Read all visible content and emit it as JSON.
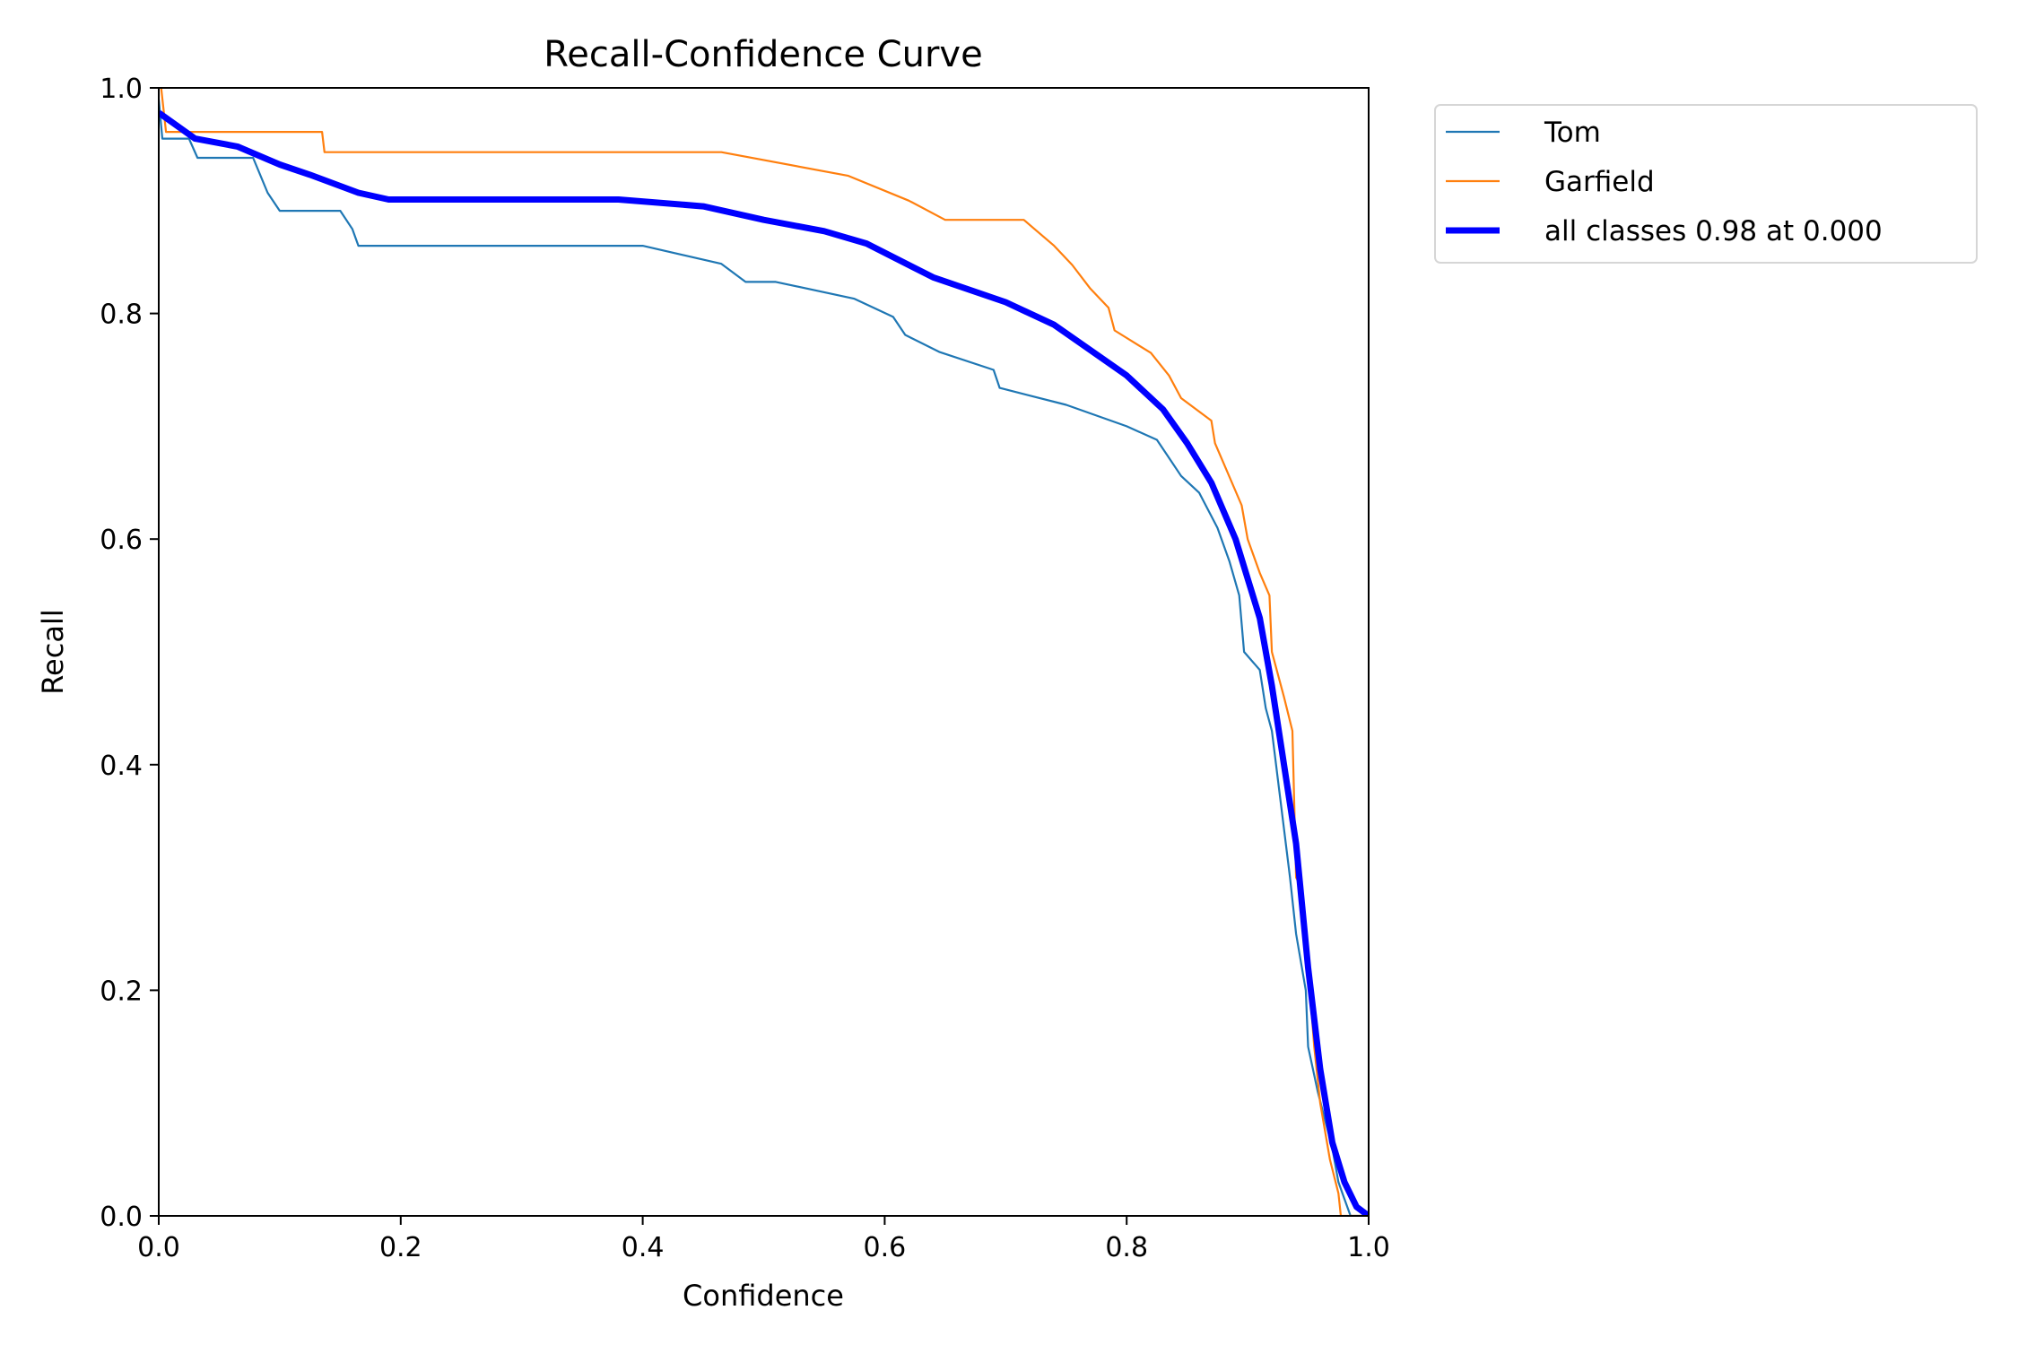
{
  "chart_data": {
    "type": "line",
    "title": "Recall-Confidence Curve",
    "xlabel": "Confidence",
    "ylabel": "Recall",
    "xlim": [
      0,
      1
    ],
    "ylim": [
      0,
      1
    ],
    "xticks": [
      "0.0",
      "0.2",
      "0.4",
      "0.6",
      "0.8",
      "1.0"
    ],
    "yticks": [
      "0.0",
      "0.2",
      "0.4",
      "0.6",
      "0.8",
      "1.0"
    ],
    "grid": false,
    "legend_placement": "outside-top-right",
    "series": [
      {
        "name": "Tom",
        "color": "#1f77b4",
        "x": [
          0,
          0.003,
          0.025,
          0.032,
          0.078,
          0.09,
          0.1,
          0.15,
          0.16,
          0.165,
          0.4,
          0.465,
          0.485,
          0.51,
          0.575,
          0.607,
          0.617,
          0.645,
          0.69,
          0.695,
          0.75,
          0.8,
          0.825,
          0.835,
          0.845,
          0.86,
          0.875,
          0.885,
          0.893,
          0.897,
          0.91,
          0.915,
          0.92,
          0.935,
          0.94,
          0.948,
          0.95,
          0.958,
          0.97,
          0.975,
          0.98,
          0.985,
          1.0
        ],
        "y": [
          0.99,
          0.955,
          0.955,
          0.938,
          0.938,
          0.907,
          0.891,
          0.891,
          0.875,
          0.86,
          0.86,
          0.844,
          0.828,
          0.828,
          0.813,
          0.797,
          0.781,
          0.766,
          0.75,
          0.734,
          0.719,
          0.7,
          0.688,
          0.672,
          0.656,
          0.641,
          0.61,
          0.58,
          0.55,
          0.5,
          0.484,
          0.45,
          0.43,
          0.3,
          0.25,
          0.2,
          0.15,
          0.11,
          0.06,
          0.03,
          0.015,
          0.0,
          0.0
        ]
      },
      {
        "name": "Garfield",
        "color": "#ff7f0e",
        "x": [
          0.002,
          0.006,
          0.135,
          0.137,
          0.465,
          0.57,
          0.62,
          0.65,
          0.715,
          0.74,
          0.755,
          0.77,
          0.785,
          0.79,
          0.82,
          0.835,
          0.845,
          0.87,
          0.873,
          0.895,
          0.9,
          0.91,
          0.918,
          0.92,
          0.93,
          0.937,
          0.94,
          0.945,
          0.955,
          0.96,
          0.968,
          0.975,
          0.977,
          1.0
        ],
        "y": [
          1.0,
          0.961,
          0.961,
          0.943,
          0.943,
          0.922,
          0.9,
          0.883,
          0.883,
          0.86,
          0.843,
          0.822,
          0.805,
          0.785,
          0.765,
          0.745,
          0.725,
          0.705,
          0.685,
          0.63,
          0.6,
          0.57,
          0.55,
          0.5,
          0.46,
          0.43,
          0.3,
          0.29,
          0.15,
          0.1,
          0.05,
          0.02,
          0.0,
          0.0
        ]
      },
      {
        "name": "all classes 0.98 at 0.000",
        "color": "#0000ff",
        "x": [
          0,
          0.03,
          0.065,
          0.1,
          0.125,
          0.165,
          0.19,
          0.38,
          0.45,
          0.5,
          0.55,
          0.585,
          0.64,
          0.7,
          0.74,
          0.8,
          0.83,
          0.85,
          0.87,
          0.89,
          0.91,
          0.92,
          0.94,
          0.95,
          0.96,
          0.97,
          0.98,
          0.99,
          1.0
        ],
        "y": [
          0.978,
          0.955,
          0.948,
          0.932,
          0.923,
          0.907,
          0.901,
          0.901,
          0.895,
          0.883,
          0.873,
          0.862,
          0.832,
          0.81,
          0.79,
          0.745,
          0.715,
          0.685,
          0.65,
          0.6,
          0.53,
          0.47,
          0.33,
          0.22,
          0.13,
          0.065,
          0.03,
          0.008,
          0.0
        ]
      }
    ]
  }
}
